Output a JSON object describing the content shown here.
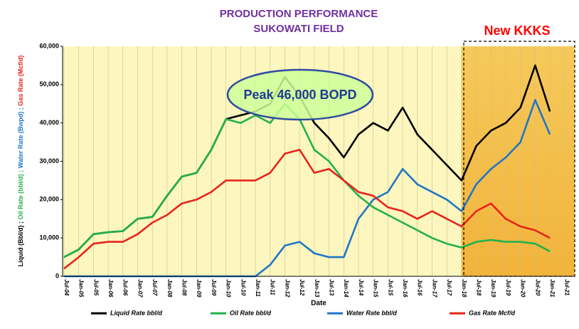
{
  "chart_data": {
    "type": "line",
    "title": [
      "PRODUCTION PERFORMANCE",
      "SUKOWATI FIELD"
    ],
    "xlabel": "Date",
    "ylabel": [
      {
        "text": "Liquid (Bbl/d) ; ",
        "color": "#000000"
      },
      {
        "text": "Oil Rate (bbl/d) ; ",
        "color": "#22b14c"
      },
      {
        "text": "Water Rate (Bwpd) ; ",
        "color": "#1f77c4"
      },
      {
        "text": "Gas Rate (Mcf/d)",
        "color": "#e8231b"
      }
    ],
    "annotations": [
      "Peak 46,000 BOPD",
      "New KKKS"
    ],
    "categories": [
      "Jul-04",
      "Jan-05",
      "Jul-05",
      "Jan-06",
      "Jul-06",
      "Jan-07",
      "Jul-07",
      "Jan-08",
      "Jul-08",
      "Jan-09",
      "Jul-09",
      "Jan-10",
      "Jul-10",
      "Jan-11",
      "Jul-11",
      "Jan-12",
      "Jul-12",
      "Jan-13",
      "Jul-13",
      "Jan-14",
      "Jul-14",
      "Jan-15",
      "Jul-15",
      "Jan-16",
      "Jul-16",
      "Jan-17",
      "Jul-17",
      "Jan-18",
      "Jul-18",
      "Jan-19",
      "Jul-19",
      "Jan-20",
      "Jul-20",
      "Jan-21",
      "Jul-21"
    ],
    "ylim": [
      0,
      60000
    ],
    "yticks": [
      0,
      {
        "value": 10000,
        "label": "10,000"
      },
      {
        "value": 20000,
        "label": "20,000"
      },
      {
        "value": 30000,
        "label": "30,000"
      },
      {
        "value": 40000,
        "label": "40,000"
      },
      {
        "value": 50000,
        "label": "50,000"
      },
      {
        "value": 60000,
        "label": "60,000"
      }
    ],
    "grid": true,
    "series": [
      {
        "name": "Liquid Rate bbl/d",
        "color": "#000000",
        "values": [
          5000,
          7000,
          11000,
          11500,
          11800,
          15000,
          15500,
          21000,
          26000,
          27000,
          33000,
          41000,
          42000,
          43000,
          45000,
          52000,
          47000,
          40000,
          36000,
          31000,
          37000,
          40000,
          38000,
          44000,
          37000,
          33000,
          29000,
          25000,
          34000,
          38000,
          40000,
          44000,
          55000,
          43000,
          null
        ]
      },
      {
        "name": "Oil Rate bbl/d",
        "color": "#22b14c",
        "values": [
          5000,
          7000,
          11000,
          11500,
          11800,
          15000,
          15500,
          21000,
          26000,
          27000,
          33000,
          41000,
          40000,
          42000,
          40000,
          45000,
          41000,
          33000,
          30000,
          25000,
          21000,
          18000,
          16000,
          14000,
          12000,
          10000,
          8500,
          7500,
          9000,
          9500,
          9000,
          9000,
          8500,
          6500,
          null
        ]
      },
      {
        "name": "Water Rate bbl/d",
        "color": "#1f77c4",
        "values": [
          0,
          0,
          0,
          0,
          0,
          0,
          0,
          0,
          0,
          0,
          0,
          0,
          0,
          0,
          3000,
          8000,
          9000,
          6000,
          5000,
          5000,
          15000,
          20000,
          22000,
          28000,
          24000,
          22000,
          20000,
          17000,
          24000,
          28000,
          31000,
          35000,
          46000,
          37000,
          null
        ]
      },
      {
        "name": "Gas Rate Mcf/d",
        "color": "#e8231b",
        "values": [
          2000,
          5000,
          8500,
          9000,
          9000,
          11000,
          14000,
          16000,
          19000,
          20000,
          22000,
          25000,
          25000,
          25000,
          27000,
          32000,
          33000,
          27000,
          28000,
          25000,
          22000,
          21000,
          18000,
          17000,
          15000,
          17000,
          15000,
          13000,
          17000,
          19000,
          15000,
          13000,
          12000,
          10000,
          null
        ]
      }
    ]
  }
}
